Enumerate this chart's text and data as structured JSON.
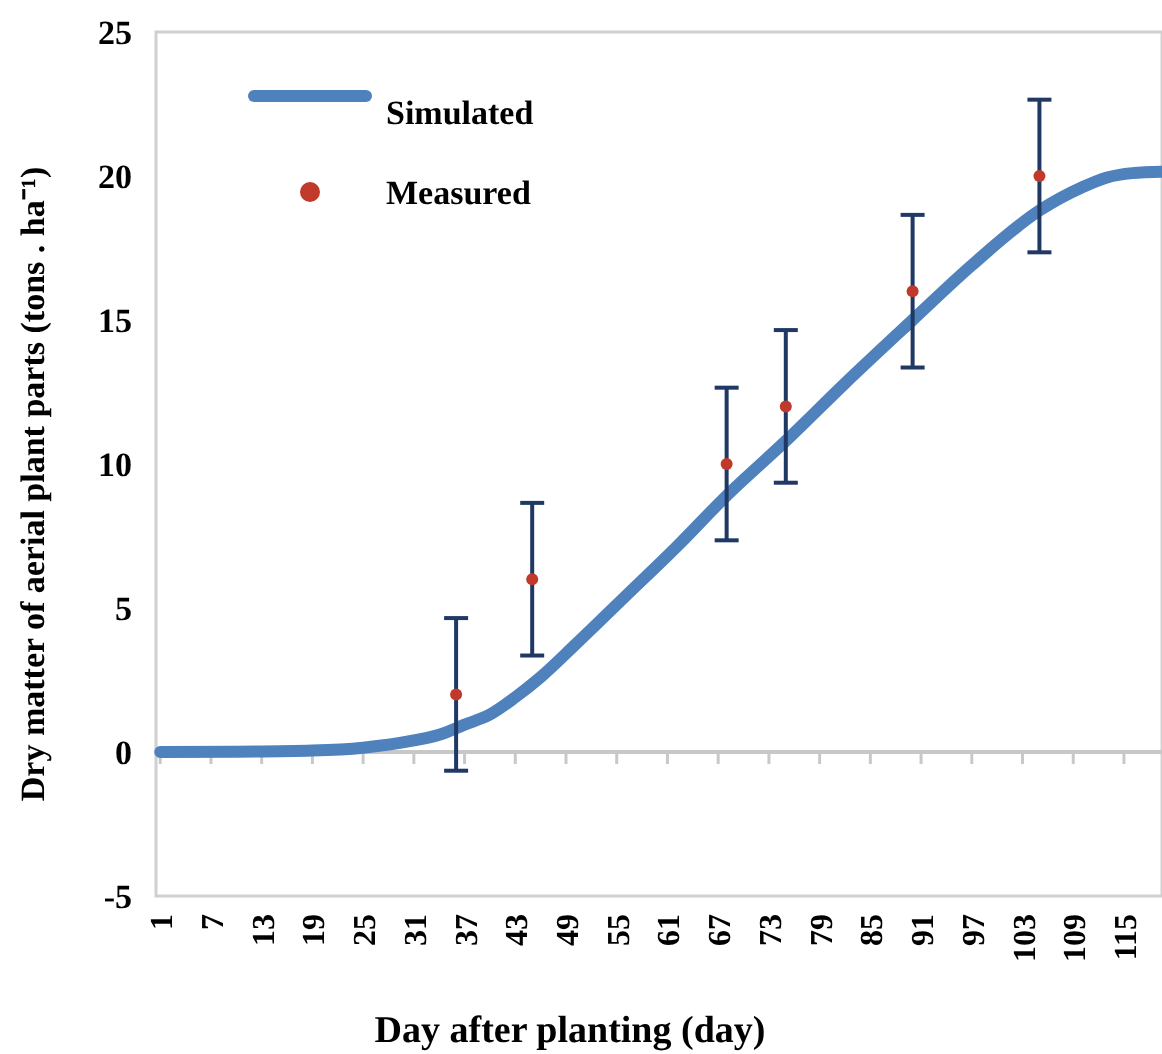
{
  "chart_data": {
    "type": "line",
    "xlabel": "Day after planting (day)",
    "ylabel": "Dry matter of aerial plant parts (tons . ha⁻¹)",
    "xlim": [
      0.5,
      119.5
    ],
    "xticks": [
      1,
      7,
      13,
      19,
      25,
      31,
      37,
      43,
      49,
      55,
      61,
      67,
      73,
      79,
      85,
      91,
      97,
      103,
      109,
      115
    ],
    "ylim": [
      -5,
      25
    ],
    "yticks": [
      -5,
      0,
      5,
      10,
      15,
      20,
      25
    ],
    "legend": "top left",
    "series": [
      {
        "name": "Simulated",
        "color": "#4f81bd",
        "marker": "none",
        "x": [
          1,
          10,
          19,
          25,
          31,
          34,
          37,
          40,
          43,
          46,
          50,
          56,
          62,
          68,
          75,
          82,
          90,
          97,
          105,
          110,
          113,
          116,
          119.5
        ],
        "values": [
          0,
          0.01,
          0.05,
          0.15,
          0.4,
          0.6,
          0.95,
          1.3,
          1.9,
          2.6,
          3.7,
          5.4,
          7.1,
          8.9,
          10.8,
          12.8,
          15.0,
          16.9,
          18.8,
          19.6,
          19.95,
          20.1,
          20.15
        ]
      },
      {
        "name": "Measured",
        "type": "scatter",
        "color": "#c0392b",
        "marker": "circle",
        "x": [
          36,
          45,
          68,
          75,
          90,
          105
        ],
        "values": [
          2,
          6,
          10,
          12,
          16,
          20
        ],
        "errors": [
          2.65,
          2.65,
          2.65,
          2.65,
          2.65,
          2.65
        ]
      }
    ]
  }
}
